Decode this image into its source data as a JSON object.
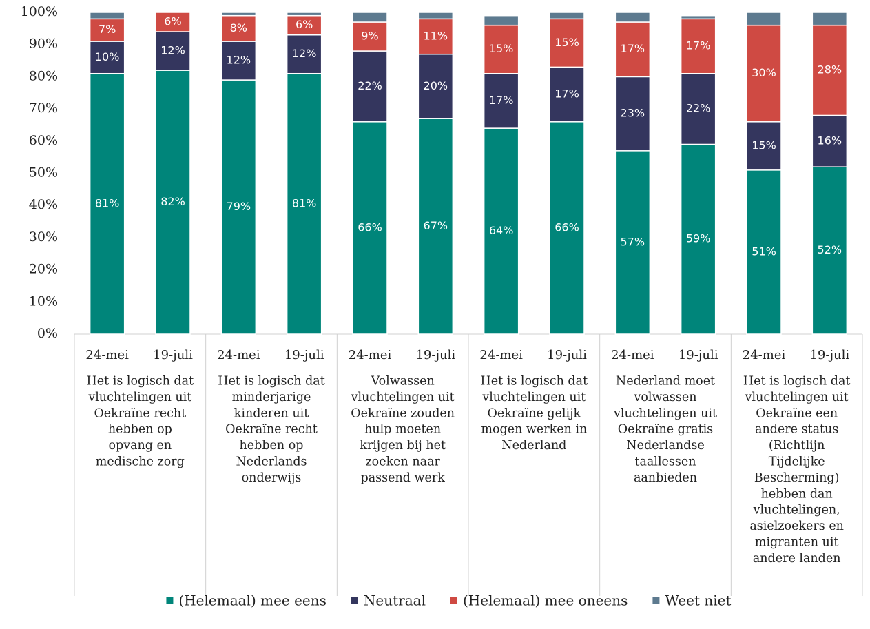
{
  "chart_data": {
    "type": "stacked_bar",
    "categories": [
      "24-mei",
      "19-juli",
      "24-mei",
      "19-juli",
      "24-mei",
      "19-juli",
      "24-mei",
      "19-juli",
      "24-mei",
      "19-juli",
      "24-mei",
      "19-juli"
    ],
    "groups": [
      {
        "lines": [
          "Het is logisch dat",
          "vluchtelingen uit",
          "Oekraïne recht",
          "hebben op",
          "opvang en",
          "medische zorg"
        ]
      },
      {
        "lines": [
          "Het is logisch dat",
          "minderjarige",
          "kinderen uit",
          "Oekraïne recht",
          "hebben op",
          "Nederlands",
          "onderwijs"
        ]
      },
      {
        "lines": [
          "Volwassen",
          "vluchtelingen uit",
          "Oekraïne zouden",
          "hulp moeten",
          "krijgen bij het",
          "zoeken naar",
          "passend werk"
        ]
      },
      {
        "lines": [
          "Het is logisch dat",
          "vluchtelingen uit",
          "Oekraïne gelijk",
          "mogen werken in",
          "Nederland"
        ]
      },
      {
        "lines": [
          "Nederland moet",
          "volwassen",
          "vluchtelingen uit",
          "Oekraïne gratis",
          "Nederlandse",
          "taallessen",
          "aanbieden"
        ]
      },
      {
        "lines": [
          "Het is logisch dat",
          "vluchtelingen uit",
          "Oekraïne een",
          "andere status",
          "(Richtlijn",
          "Tijdelijke",
          "Bescherming)",
          "hebben dan",
          "vluchtelingen,",
          "asielzoekers en",
          "migranten uit",
          "andere landen"
        ]
      }
    ],
    "series": [
      {
        "name": "(Helemaal) mee eens",
        "color": "#00857a",
        "values": [
          81,
          82,
          79,
          81,
          66,
          67,
          64,
          66,
          57,
          59,
          51,
          52
        ],
        "value_labels": [
          "81%",
          "82%",
          "79%",
          "81%",
          "66%",
          "67%",
          "64%",
          "66%",
          "57%",
          "59%",
          "51%",
          "52%"
        ]
      },
      {
        "name": "Neutraal",
        "color": "#34365e",
        "values": [
          10,
          12,
          12,
          12,
          22,
          20,
          17,
          17,
          23,
          22,
          15,
          16
        ],
        "value_labels": [
          "10%",
          "12%",
          "12%",
          "12%",
          "22%",
          "20%",
          "17%",
          "17%",
          "23%",
          "22%",
          "15%",
          "16%"
        ]
      },
      {
        "name": "(Helemaal) mee oneens",
        "color": "#cf4a43",
        "values": [
          7,
          6,
          8,
          6,
          9,
          11,
          15,
          15,
          17,
          17,
          30,
          28
        ],
        "value_labels": [
          "7%",
          "6%",
          "8%",
          "6%",
          "9%",
          "11%",
          "15%",
          "15%",
          "17%",
          "17%",
          "30%",
          "28%"
        ]
      },
      {
        "name": "Weet niet",
        "color": "#5d7a8f",
        "values": [
          2,
          0,
          1,
          1,
          3,
          2,
          3,
          2,
          3,
          1,
          4,
          4
        ]
      }
    ],
    "ylim": [
      0,
      100
    ],
    "yticks": [
      {
        "value": 0,
        "label": "0%"
      },
      {
        "value": 10,
        "label": "10%"
      },
      {
        "value": 20,
        "label": "20%"
      },
      {
        "value": 30,
        "label": "30%"
      },
      {
        "value": 40,
        "label": "40%"
      },
      {
        "value": 50,
        "label": "50%"
      },
      {
        "value": 60,
        "label": "60%"
      },
      {
        "value": 70,
        "label": "70%"
      },
      {
        "value": 80,
        "label": "80%"
      },
      {
        "value": 90,
        "label": "90%"
      },
      {
        "value": 100,
        "label": "100%"
      }
    ],
    "legend": "bottom"
  }
}
